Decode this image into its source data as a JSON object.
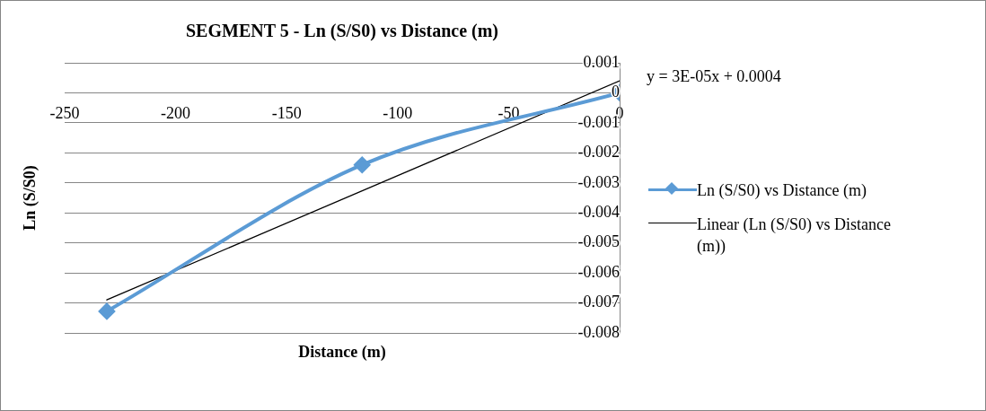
{
  "chart_data": {
    "type": "line",
    "title": "SEGMENT 5 - Ln (S/S0) vs Distance (m)",
    "xlabel": "Distance (m)",
    "ylabel": "Ln (S/S0)",
    "x": [
      -231,
      -116,
      0
    ],
    "series": [
      {
        "name": "Ln (S/S0) vs Distance (m)",
        "color": "#5b9bd5",
        "values": [
          -0.00728,
          -0.0024,
          0
        ],
        "marker": "diamond"
      },
      {
        "name": "Linear (Ln (S/S0) vs Distance (m))",
        "type": "line",
        "color": "#000000",
        "x": [
          -231,
          0
        ],
        "values": [
          -0.0069,
          0.0004
        ],
        "marker": "none"
      }
    ],
    "xlim": [
      -250,
      0
    ],
    "xticks": [
      -250,
      -200,
      -150,
      -100,
      -50,
      0
    ],
    "ylim": [
      -0.008,
      0.001
    ],
    "yticks": [
      -0.008,
      -0.007,
      -0.006,
      -0.005,
      -0.004,
      -0.003,
      -0.002,
      -0.001,
      0,
      0.001
    ],
    "grid": "y",
    "legend": "right",
    "annotations": [
      "y = 3E-05x + 0.0004"
    ]
  }
}
